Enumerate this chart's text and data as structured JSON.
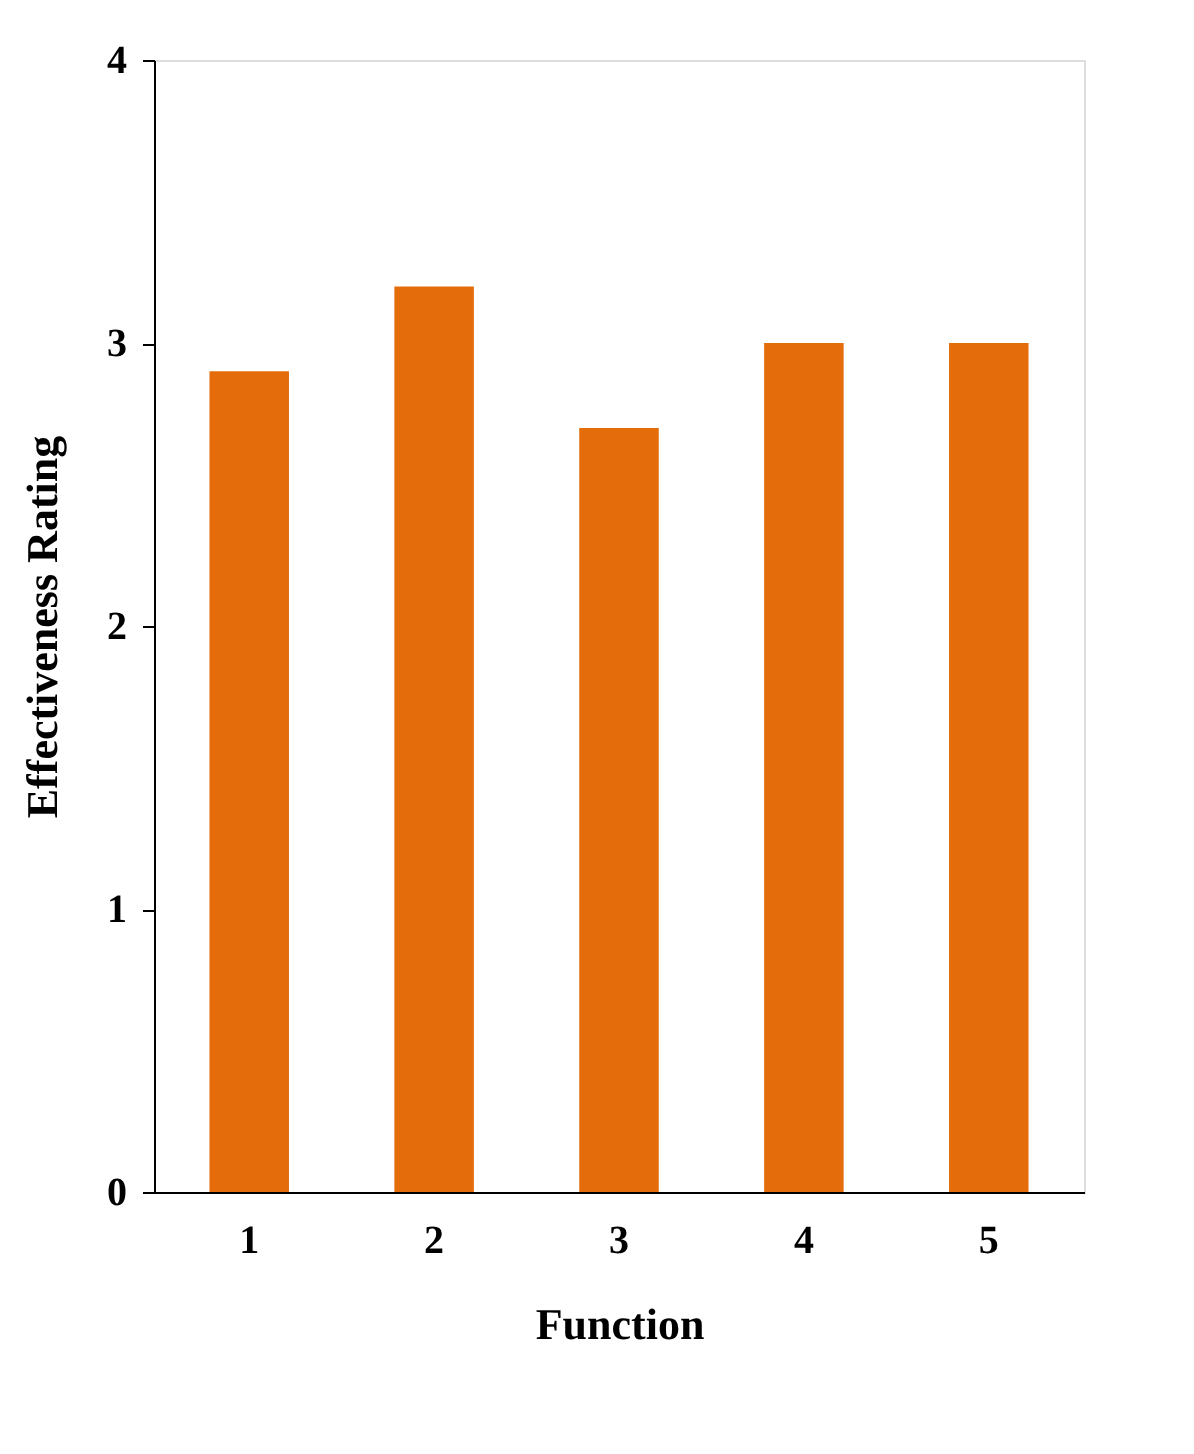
{
  "chart_data": {
    "type": "bar",
    "xlabel": "Function",
    "ylabel": "Effectiveness Rating",
    "categories": [
      "1",
      "2",
      "3",
      "4",
      "5"
    ],
    "values": [
      2.9,
      3.2,
      2.7,
      3.0,
      3.0
    ],
    "color": "#e46c0a",
    "ylim": [
      0,
      4
    ],
    "yticks": [
      0,
      1,
      2,
      3,
      4
    ],
    "grid": false
  }
}
